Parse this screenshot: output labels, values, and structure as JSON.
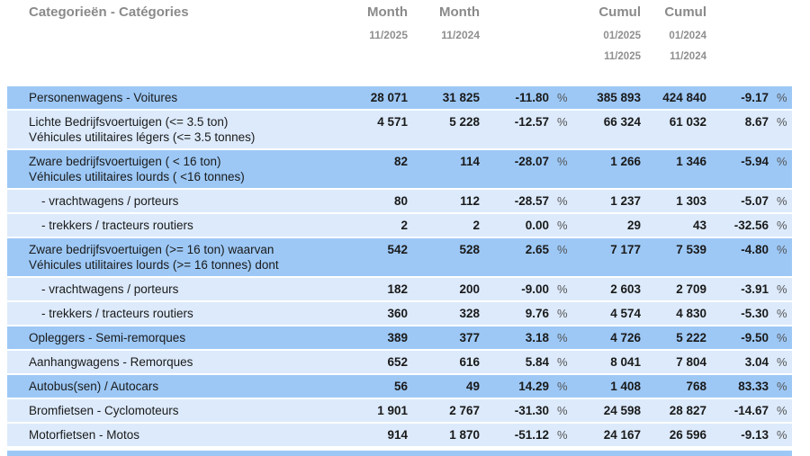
{
  "header": {
    "category_label": "Categorieën - Catégories",
    "columns": [
      {
        "title": "Month",
        "dates": [
          "11/2025"
        ]
      },
      {
        "title": "Month",
        "dates": [
          "11/2024"
        ]
      },
      {
        "title": "Cumul",
        "dates": [
          "01/2025",
          "11/2025"
        ]
      },
      {
        "title": "Cumul",
        "dates": [
          "01/2024",
          "11/2024"
        ]
      }
    ]
  },
  "table": {
    "percent_sign": "%",
    "rows": [
      {
        "shade": "dark",
        "indent": false,
        "label_lines": [
          "Personenwagens - Voitures"
        ],
        "month_cur": "28 071",
        "month_prev": "31 825",
        "month_pct": "-11.80",
        "cumul_cur": "385 893",
        "cumul_prev": "424 840",
        "cumul_pct": "-9.17"
      },
      {
        "shade": "light",
        "indent": false,
        "label_lines": [
          "Lichte Bedrijfsvoertuigen (<= 3.5 ton)",
          "Véhicules utilitaires légers (<= 3.5 tonnes)"
        ],
        "month_cur": "4 571",
        "month_prev": "5 228",
        "month_pct": "-12.57",
        "cumul_cur": "66 324",
        "cumul_prev": "61 032",
        "cumul_pct": "8.67"
      },
      {
        "shade": "dark",
        "indent": false,
        "label_lines": [
          "Zware bedrijfsvoertuigen ( < 16 ton)",
          "Véhicules utilitaires lourds ( <16 tonnes)"
        ],
        "month_cur": "82",
        "month_prev": "114",
        "month_pct": "-28.07",
        "cumul_cur": "1 266",
        "cumul_prev": "1 346",
        "cumul_pct": "-5.94"
      },
      {
        "shade": "light",
        "indent": true,
        "label_lines": [
          "- vrachtwagens / porteurs"
        ],
        "month_cur": "80",
        "month_prev": "112",
        "month_pct": "-28.57",
        "cumul_cur": "1 237",
        "cumul_prev": "1 303",
        "cumul_pct": "-5.07"
      },
      {
        "shade": "light",
        "indent": true,
        "label_lines": [
          "- trekkers / tracteurs routiers"
        ],
        "month_cur": "2",
        "month_prev": "2",
        "month_pct": "0.00",
        "cumul_cur": "29",
        "cumul_prev": "43",
        "cumul_pct": "-32.56"
      },
      {
        "shade": "dark",
        "indent": false,
        "label_lines": [
          "Zware bedrijfsvoertuigen (>= 16 ton) waarvan",
          "Véhicules utilitaires lourds (>= 16 tonnes) dont"
        ],
        "month_cur": "542",
        "month_prev": "528",
        "month_pct": "2.65",
        "cumul_cur": "7 177",
        "cumul_prev": "7 539",
        "cumul_pct": "-4.80"
      },
      {
        "shade": "light",
        "indent": true,
        "label_lines": [
          "- vrachtwagens / porteurs"
        ],
        "month_cur": "182",
        "month_prev": "200",
        "month_pct": "-9.00",
        "cumul_cur": "2 603",
        "cumul_prev": "2 709",
        "cumul_pct": "-3.91"
      },
      {
        "shade": "light",
        "indent": true,
        "label_lines": [
          "- trekkers / tracteurs routiers"
        ],
        "month_cur": "360",
        "month_prev": "328",
        "month_pct": "9.76",
        "cumul_cur": "4 574",
        "cumul_prev": "4 830",
        "cumul_pct": "-5.30"
      },
      {
        "shade": "dark",
        "indent": false,
        "label_lines": [
          "Opleggers - Semi-remorques"
        ],
        "month_cur": "389",
        "month_prev": "377",
        "month_pct": "3.18",
        "cumul_cur": "4 726",
        "cumul_prev": "5 222",
        "cumul_pct": "-9.50"
      },
      {
        "shade": "light",
        "indent": false,
        "label_lines": [
          "Aanhangwagens - Remorques"
        ],
        "month_cur": "652",
        "month_prev": "616",
        "month_pct": "5.84",
        "cumul_cur": "8 041",
        "cumul_prev": "7 804",
        "cumul_pct": "3.04"
      },
      {
        "shade": "dark",
        "indent": false,
        "label_lines": [
          "Autobus(sen) / Autocars"
        ],
        "month_cur": "56",
        "month_prev": "49",
        "month_pct": "14.29",
        "cumul_cur": "1 408",
        "cumul_prev": "768",
        "cumul_pct": "83.33"
      },
      {
        "shade": "light",
        "indent": false,
        "label_lines": [
          "Bromfietsen - Cyclomoteurs"
        ],
        "month_cur": "1 901",
        "month_prev": "2 767",
        "month_pct": "-31.30",
        "cumul_cur": "24 598",
        "cumul_prev": "28 827",
        "cumul_pct": "-14.67"
      },
      {
        "shade": "light",
        "indent": false,
        "label_lines": [
          "Motorfietsen - Motos"
        ],
        "month_cur": "914",
        "month_prev": "1 870",
        "month_pct": "-51.12",
        "cumul_cur": "24 167",
        "cumul_prev": "26 596",
        "cumul_pct": "-9.13"
      }
    ]
  },
  "colors": {
    "row_dark": "#9dc8f6",
    "row_light": "#dceafb",
    "header_text": "#8a8a8a",
    "body_text": "#1a1a1a"
  }
}
